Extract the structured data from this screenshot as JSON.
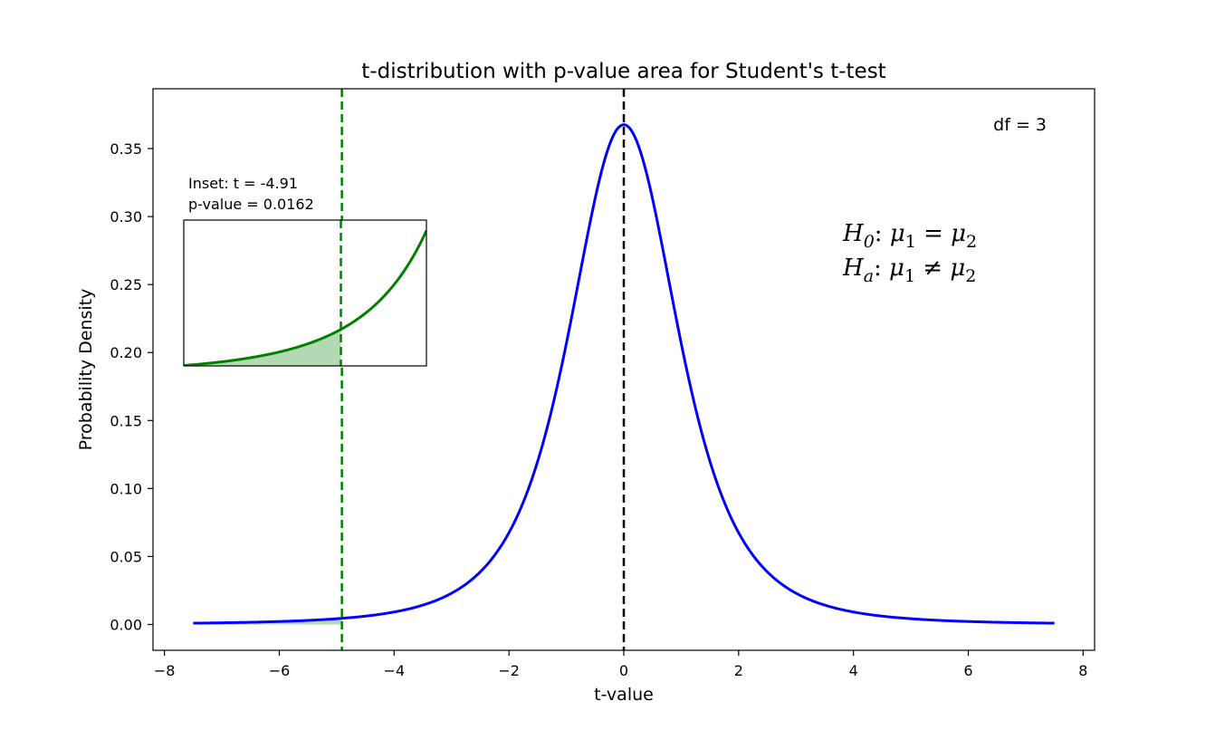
{
  "chart_data": {
    "type": "line",
    "title": "t-distribution with p-value area for Student's t-test",
    "xlabel": "t-value",
    "ylabel": "Probability Density",
    "xlim": [
      -8.2,
      8.2
    ],
    "ylim": [
      -0.019,
      0.394
    ],
    "xticks": [
      -8,
      -6,
      -4,
      -2,
      0,
      2,
      4,
      6,
      8
    ],
    "xtick_labels": [
      "−8",
      "−6",
      "−4",
      "−2",
      "0",
      "2",
      "4",
      "6",
      "8"
    ],
    "yticks": [
      0.0,
      0.05,
      0.1,
      0.15,
      0.2,
      0.25,
      0.3,
      0.35
    ],
    "ytick_labels": [
      "0.00",
      "0.05",
      "0.10",
      "0.15",
      "0.20",
      "0.25",
      "0.30",
      "0.35"
    ],
    "grid": false,
    "df": 3,
    "df_label": "df = 3",
    "t_statistic": -4.91,
    "curve_range": [
      -7.5,
      7.5
    ],
    "series": [
      {
        "color": "#0000ff",
        "values_desc": "Student t pdf, df=3",
        "x": [
          -7.5,
          -6,
          -5,
          -4,
          -3,
          -2,
          -1.5,
          -1,
          -0.5,
          0,
          0.5,
          1,
          1.5,
          2,
          3,
          4,
          5,
          6,
          7.5
        ],
        "y": [
          0.0011,
          0.0023,
          0.0042,
          0.0092,
          0.023,
          0.0675,
          0.122,
          0.2067,
          0.3125,
          0.3676,
          0.3125,
          0.2067,
          0.122,
          0.0675,
          0.023,
          0.0092,
          0.0042,
          0.0023,
          0.0011
        ]
      }
    ],
    "vlines": [
      {
        "x": 0,
        "color": "#000000",
        "style": "dashed"
      },
      {
        "x": -4.91,
        "color": "#008000",
        "style": "dashed"
      }
    ],
    "shaded_region": {
      "from": -7.5,
      "to": -4.91,
      "color": "#008000"
    },
    "colors": {
      "curve": "#0000ff",
      "pvalue": "#008000",
      "mean": "#000000",
      "shade": "#b3d9b3"
    },
    "inset": {
      "title_line1": "Inset: t = -4.91",
      "title_line2": "p-value = 0.0162",
      "xlim": [
        -7.5,
        -3.5
      ],
      "vline_x": -4.91
    },
    "hypotheses": {
      "h0": {
        "base": "H",
        "sub": "0",
        "mid": ": ",
        "mu1": "μ",
        "mu1_sub": "1",
        "op": " = ",
        "mu2": "μ",
        "mu2_sub": "2"
      },
      "ha": {
        "base": "H",
        "sub": "a",
        "mid": ": ",
        "mu1": "μ",
        "mu1_sub": "1",
        "op": " ≠ ",
        "mu2": "μ",
        "mu2_sub": "2"
      }
    }
  }
}
